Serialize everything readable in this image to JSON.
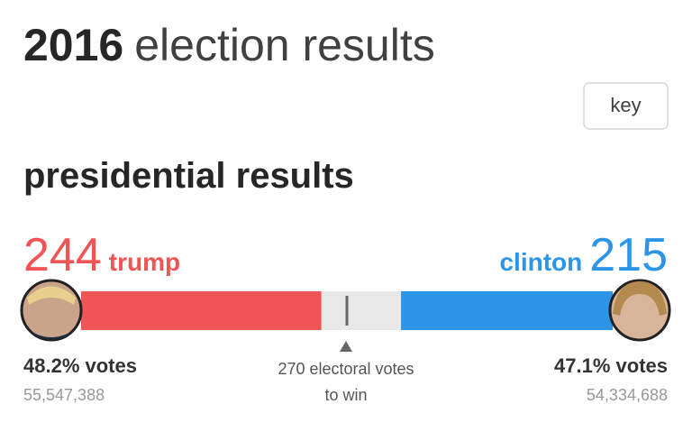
{
  "header": {
    "title_bold": "2016",
    "title_rest": "election results"
  },
  "key_button": "key",
  "section_title": "presidential results",
  "candidates": [
    {
      "name": "trump",
      "electoral": 244,
      "color": "#f05454",
      "vote_share": "48.2% votes",
      "vote_count": "55,547,388"
    },
    {
      "name": "clinton",
      "electoral": 215,
      "color": "#2c95e8",
      "vote_share": "47.1% votes",
      "vote_count": "54,334,688"
    }
  ],
  "threshold": {
    "value": 270,
    "line1": "270 electoral votes",
    "line2": "to win"
  }
}
